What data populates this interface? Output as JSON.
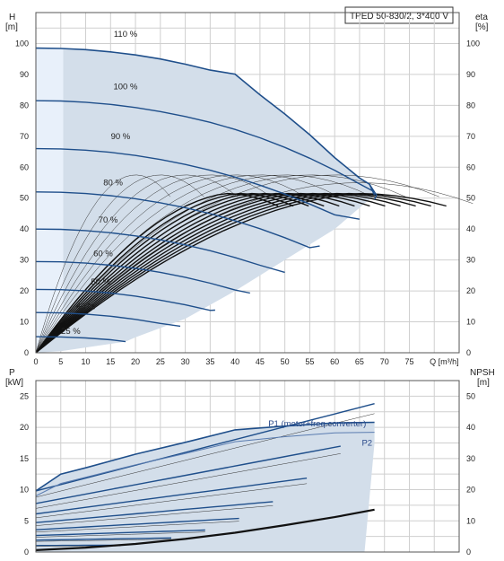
{
  "chart_data": [
    {
      "type": "line",
      "title": "TPED 50-830/2, 3*400 V",
      "ylabel": "H\n[m]",
      "ylabel_right": "eta\n[%]",
      "xlabel": "Q [m³/h]",
      "xlim": [
        0,
        85
      ],
      "ylim": [
        0,
        110
      ],
      "grid": true,
      "x_ticks": [
        0,
        5,
        10,
        15,
        20,
        25,
        30,
        35,
        40,
        45,
        50,
        55,
        60,
        65,
        70,
        75
      ],
      "x_tick_labels": [
        "0",
        "5",
        "10",
        "15",
        "20",
        "25",
        "30",
        "35",
        "40",
        "45",
        "50",
        "55",
        "60",
        "65",
        "70",
        "75"
      ],
      "y_ticks": [
        0,
        10,
        20,
        30,
        40,
        50,
        60,
        70,
        80,
        90,
        100
      ],
      "series": [
        {
          "name": "110 %",
          "x": [
            0,
            5,
            10,
            15,
            20,
            25,
            30,
            35,
            40,
            45,
            50,
            55,
            60,
            65,
            67,
            68
          ],
          "y": [
            98.5,
            98.4,
            98,
            97.3,
            96.3,
            95,
            93.3,
            91.4,
            90.1,
            83.4,
            77.2,
            70.5,
            63.1,
            56.5,
            54.5,
            51
          ]
        },
        {
          "name": "100 %",
          "x": [
            0,
            5,
            10,
            15,
            20,
            25,
            30,
            35,
            40,
            45,
            50,
            55,
            60,
            65,
            68
          ],
          "y": [
            81.5,
            81.4,
            81,
            80.3,
            79.3,
            78,
            76.4,
            74.5,
            72.2,
            69.5,
            66.4,
            62.9,
            59,
            54.6,
            52
          ]
        },
        {
          "name": "90 %",
          "x": [
            0,
            5,
            10,
            15,
            20,
            25,
            30,
            35,
            40,
            45,
            50,
            55,
            60,
            65
          ],
          "y": [
            66,
            65.9,
            65.5,
            64.8,
            63.8,
            62.5,
            60.9,
            59,
            56.8,
            54.2,
            51.3,
            48.1,
            44.6,
            43.2
          ]
        },
        {
          "name": "80 %",
          "x": [
            0,
            5,
            10,
            15,
            20,
            25,
            30,
            35,
            40,
            45,
            50,
            55,
            57
          ],
          "y": [
            52,
            51.9,
            51.5,
            50.8,
            49.8,
            48.5,
            46.9,
            45,
            42.7,
            40.1,
            37.2,
            34,
            34.5
          ]
        },
        {
          "name": "70 %",
          "x": [
            0,
            5,
            10,
            15,
            20,
            25,
            30,
            35,
            40,
            45,
            50
          ],
          "y": [
            40,
            39.9,
            39.5,
            38.8,
            37.8,
            36.5,
            34.9,
            33,
            30.8,
            28.3,
            26
          ]
        },
        {
          "name": "60 %",
          "x": [
            0,
            5,
            10,
            15,
            20,
            25,
            30,
            35,
            40,
            43
          ],
          "y": [
            29.5,
            29.4,
            29,
            28.3,
            27.3,
            26,
            24.4,
            22.5,
            20.3,
            19.3
          ]
        },
        {
          "name": "50 %",
          "x": [
            0,
            5,
            10,
            15,
            20,
            25,
            30,
            35,
            36
          ],
          "y": [
            20.5,
            20.4,
            20,
            19.3,
            18.3,
            17,
            15.5,
            13.7,
            13.8
          ]
        },
        {
          "name": "40 %",
          "x": [
            0,
            5,
            10,
            15,
            20,
            25,
            29
          ],
          "y": [
            13,
            12.9,
            12.5,
            11.8,
            10.8,
            9.5,
            8.6
          ]
        },
        {
          "name": "25 %",
          "x": [
            0,
            5,
            10,
            15,
            18
          ],
          "y": [
            5.2,
            5.1,
            4.8,
            4.2,
            3.6
          ]
        }
      ],
      "efficiency_peak_x": [
        20,
        25,
        30,
        35,
        40,
        45,
        50,
        55,
        60,
        65
      ],
      "efficiency_peak_y": [
        57.5,
        57.5,
        57.5,
        57.5,
        57.5,
        57.5,
        57.5,
        57.5,
        57.5,
        55
      ],
      "eta_ticks": [
        0,
        10,
        20,
        30,
        40,
        50,
        60,
        70,
        80,
        90,
        100
      ]
    },
    {
      "type": "line",
      "ylabel": "P\n[kW]",
      "ylabel_right": "NPSH\n[m]",
      "xlim": [
        0,
        85
      ],
      "ylim": [
        0,
        27.5
      ],
      "grid": true,
      "y_ticks": [
        0,
        5,
        10,
        15,
        20,
        25
      ],
      "npsh_ticks": [
        0,
        10,
        20,
        30,
        40,
        50
      ],
      "series": [
        {
          "name": "P1 (motor+freq.converter)",
          "x": [
            0,
            5,
            10,
            20,
            30,
            40,
            50,
            60,
            68
          ],
          "y": [
            9.8,
            12.5,
            13.5,
            15.7,
            17.6,
            19.6,
            20.2,
            20.7,
            20.8
          ]
        },
        {
          "name": "P2",
          "x": [
            0,
            5,
            10,
            20,
            30,
            40,
            50,
            60,
            68
          ],
          "y": [
            9,
            11,
            12,
            14,
            15.8,
            17.7,
            18.5,
            19.1,
            19.2
          ]
        },
        {
          "name": "NPSH",
          "x": [
            0,
            10,
            20,
            30,
            40,
            50,
            60,
            68
          ],
          "y": [
            0.3,
            0.7,
            1.3,
            2.1,
            3.1,
            4.3,
            5.6,
            6.8
          ]
        }
      ],
      "labels": [
        "P1 (motor+freq.converter)",
        "P2"
      ]
    }
  ]
}
